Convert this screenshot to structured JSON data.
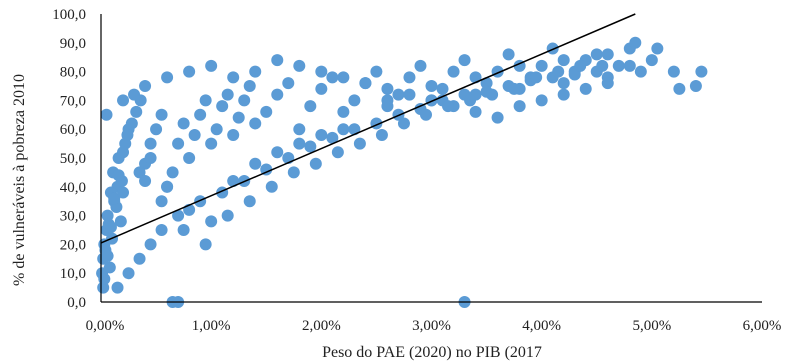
{
  "chart_data": {
    "type": "scatter",
    "title": "",
    "xlabel": "Peso do PAE (2020) no PIB (2017",
    "ylabel": "% de vulneráveis à pobreza 2010",
    "xlim": [
      0,
      0.06
    ],
    "ylim": [
      0,
      100
    ],
    "x_ticks": [
      "0,00%",
      "1,00%",
      "2,00%",
      "3,00%",
      "4,00%",
      "5,00%",
      "6,00%"
    ],
    "y_ticks": [
      "0,0",
      "10,0",
      "20,0",
      "30,0",
      "40,0",
      "50,0",
      "60,0",
      "70,0",
      "80,0",
      "90,0",
      "100,0"
    ],
    "grid": false,
    "legend": "none",
    "colors": {
      "points": "#5b9bd5",
      "trendline": "#000000"
    },
    "trendline": {
      "x": [
        0,
        0.0485
      ],
      "y": [
        20.5,
        100
      ]
    },
    "series": [
      {
        "x": [
          0.0001,
          0.0002,
          0.0003,
          0.0005,
          0.0006,
          0.0008,
          0.001,
          0.0012,
          0.0015,
          0.0018,
          0.0002,
          0.0004,
          0.0007,
          0.0009,
          0.0011,
          0.0014,
          0.0016,
          0.0019,
          0.0022,
          0.0025,
          0.0003,
          0.0006,
          0.0009,
          0.0012,
          0.0016,
          0.002,
          0.0024,
          0.0028,
          0.0032,
          0.0036,
          0.004,
          0.0045,
          0.005,
          0.0055,
          0.006,
          0.0065,
          0.007,
          0.0075,
          0.008,
          0.0085,
          0.009,
          0.0095,
          0.01,
          0.0105,
          0.011,
          0.0115,
          0.012,
          0.0125,
          0.013,
          0.0135,
          0.014,
          0.015,
          0.016,
          0.017,
          0.018,
          0.019,
          0.02,
          0.021,
          0.022,
          0.023,
          0.024,
          0.025,
          0.026,
          0.027,
          0.028,
          0.029,
          0.03,
          0.031,
          0.032,
          0.033,
          0.034,
          0.035,
          0.036,
          0.037,
          0.038,
          0.039,
          0.04,
          0.041,
          0.042,
          0.043,
          0.044,
          0.045,
          0.046,
          0.047,
          0.048,
          0.049,
          0.05,
          0.052,
          0.054,
          0.0545,
          0.0015,
          0.0025,
          0.0035,
          0.0045,
          0.0055,
          0.007,
          0.009,
          0.011,
          0.013,
          0.015,
          0.017,
          0.019,
          0.021,
          0.023,
          0.025,
          0.027,
          0.029,
          0.031,
          0.033,
          0.035,
          0.037,
          0.039,
          0.041,
          0.043,
          0.045,
          0.0005,
          0.0065,
          0.007,
          0.033,
          0.002,
          0.003,
          0.004,
          0.006,
          0.008,
          0.01,
          0.012,
          0.014,
          0.016,
          0.018,
          0.02,
          0.022,
          0.024,
          0.026,
          0.028,
          0.03,
          0.032,
          0.034,
          0.036,
          0.038,
          0.04,
          0.042,
          0.044,
          0.046,
          0.048,
          0.0035,
          0.0045,
          0.0055,
          0.0075,
          0.0095,
          0.0115,
          0.0135,
          0.0155,
          0.0175,
          0.0195,
          0.0215,
          0.0235,
          0.0255,
          0.0275,
          0.0295,
          0.0315,
          0.0335,
          0.0355,
          0.0375,
          0.0395,
          0.0415,
          0.0435,
          0.0455,
          0.002,
          0.004,
          0.006,
          0.008,
          0.01,
          0.012,
          0.014,
          0.016,
          0.018,
          0.02,
          0.022,
          0.026,
          0.03,
          0.034,
          0.038,
          0.042,
          0.046,
          0.0505,
          0.0525,
          0.0485
        ],
        "y": [
          10,
          15,
          20,
          25,
          30,
          12,
          22,
          35,
          40,
          28,
          5,
          18,
          27,
          38,
          45,
          33,
          50,
          42,
          55,
          60,
          8,
          16,
          26,
          36,
          44,
          52,
          58,
          62,
          66,
          70,
          48,
          55,
          60,
          65,
          40,
          45,
          55,
          62,
          50,
          58,
          65,
          70,
          55,
          60,
          68,
          72,
          58,
          64,
          70,
          75,
          62,
          66,
          72,
          76,
          60,
          68,
          74,
          78,
          66,
          70,
          76,
          80,
          68,
          72,
          78,
          82,
          70,
          74,
          80,
          84,
          72,
          76,
          80,
          86,
          74,
          78,
          82,
          88,
          76,
          80,
          84,
          86,
          78,
          82,
          88,
          80,
          84,
          80,
          75,
          80,
          5,
          10,
          15,
          20,
          25,
          30,
          35,
          38,
          42,
          46,
          50,
          54,
          57,
          60,
          62,
          65,
          67,
          70,
          72,
          73,
          75,
          77,
          78,
          79,
          80,
          65,
          0,
          0,
          0,
          70,
          72,
          75,
          78,
          80,
          82,
          78,
          80,
          84,
          82,
          80,
          78,
          76,
          74,
          72,
          70,
          68,
          66,
          64,
          68,
          70,
          72,
          74,
          76,
          82,
          45,
          50,
          35,
          25,
          20,
          30,
          35,
          40,
          45,
          48,
          52,
          55,
          58,
          62,
          65,
          68,
          70,
          72,
          74,
          78,
          80,
          82,
          82,
          38,
          42,
          40,
          32,
          28,
          42,
          48,
          52,
          55,
          58,
          60,
          70,
          75,
          78,
          82,
          84,
          86,
          88,
          74,
          90
        ]
      }
    ]
  }
}
